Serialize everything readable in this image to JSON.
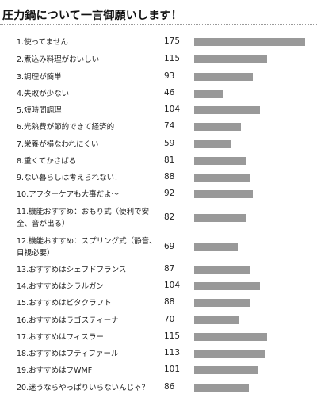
{
  "title": "圧力鍋について一言御願いします！",
  "chart_data": {
    "type": "bar",
    "orientation": "horizontal",
    "title": "圧力鍋について一言御願いします！",
    "xlabel": "",
    "ylabel": "",
    "grid": false,
    "legend": "none",
    "categories": [
      "1.使ってません",
      "2.煮込み料理がおいしい",
      "3.調理が簡単",
      "4.失敗が少ない",
      "5.短時間調理",
      "6.光熱費が節約できて経済的",
      "7.栄養が損なわれにくい",
      "8.重くてかさばる",
      "9.ない暮らしは考えられない！",
      "10.アフターケアも大事だよ〜",
      "11.機能おすすめ：おもり式（便利で安全、音が出る）",
      "12.機能おすすめ：スプリング式（静音、目視必要）",
      "13.おすすめはシェフドフランス",
      "14.おすすめはシラルガン",
      "15.おすすめはピタクラフト",
      "16.おすすめはラゴスティーナ",
      "17.おすすめはフィスラー",
      "18.おすすめはフティファール",
      "19.おすすめはフWMF",
      "20.迷うならやっぱりいらないんじゃ？"
    ],
    "values": [
      175,
      115,
      93,
      46,
      104,
      74,
      59,
      81,
      88,
      92,
      82,
      69,
      87,
      104,
      88,
      70,
      115,
      113,
      101,
      86
    ],
    "bar_color": "#999999"
  }
}
